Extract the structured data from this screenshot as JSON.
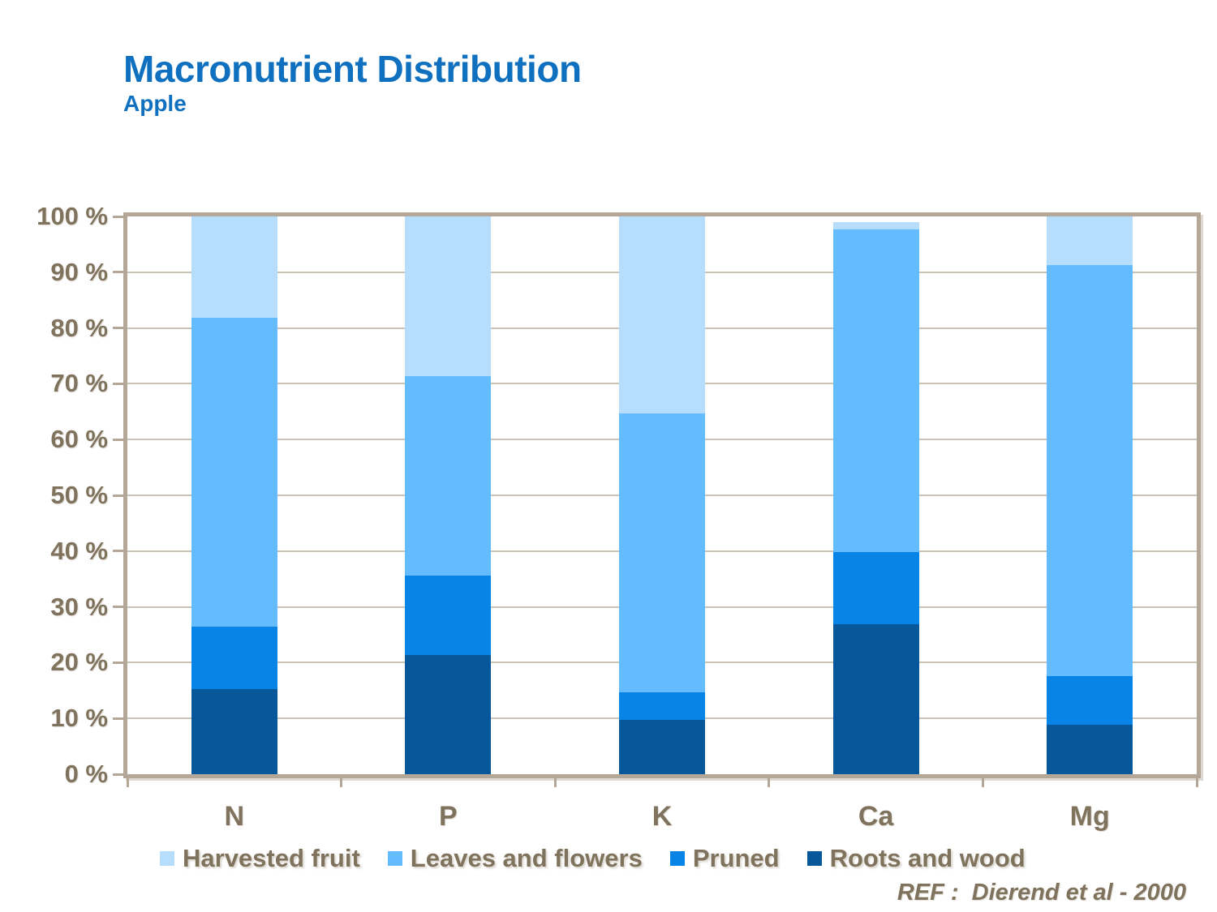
{
  "title": "Macronutrient Distribution",
  "subtitle": "Apple",
  "reference": "REF :  Dierend et al - 2000",
  "colors": {
    "title_blue": "#0F70C0",
    "axis_text_brown": "#80735E",
    "gridline": "#CBC2B5",
    "plot_frame": "#B4A797",
    "harvested_fruit": "#B7DDFC",
    "leaves_and_flowers": "#64BBFD",
    "pruned": "#0884E7",
    "roots_and_wood": "#07589B"
  },
  "chart_data": {
    "type": "bar",
    "stacked": true,
    "title": "Macronutrient Distribution",
    "subtitle": "Apple",
    "categories": [
      "N",
      "P",
      "K",
      "Ca",
      "Mg"
    ],
    "series": [
      {
        "name": "Roots and wood",
        "color": "#07589B",
        "values": [
          15.3,
          21.4,
          9.7,
          26.9,
          8.8
        ]
      },
      {
        "name": "Pruned",
        "color": "#0884E7",
        "values": [
          11.2,
          14.2,
          5.0,
          12.9,
          8.8
        ]
      },
      {
        "name": "Leaves and flowers",
        "color": "#64BBFD",
        "values": [
          55.3,
          35.8,
          50.0,
          57.9,
          73.7
        ]
      },
      {
        "name": "Harvested fruit",
        "color": "#B7DDFC",
        "values": [
          18.2,
          28.6,
          35.3,
          1.3,
          8.7
        ]
      }
    ],
    "stack_totals": [
      100.0,
      100.0,
      100.0,
      99.0,
      100.0
    ],
    "legend_order": [
      "Harvested fruit",
      "Leaves and flowers",
      "Pruned",
      "Roots and wood"
    ],
    "legend_position": "bottom",
    "xlabel": "",
    "ylabel": "",
    "ylim": [
      0,
      100
    ],
    "grid": true,
    "y_tick_labels": [
      "0 %",
      "10 %",
      "20 %",
      "30 %",
      "40 %",
      "50 %",
      "60 %",
      "70 %",
      "80 %",
      "90 %",
      "100 %"
    ]
  }
}
